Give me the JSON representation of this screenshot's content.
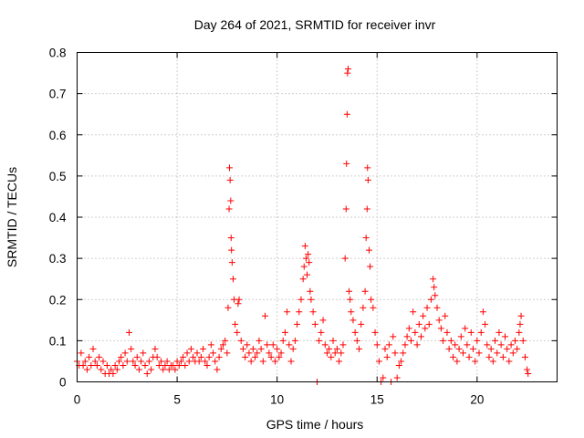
{
  "chart_data": {
    "type": "scatter",
    "title": "Day 264 of 2021, SRMTID for receiver invr",
    "xlabel": "GPS time / hours",
    "ylabel": "SRMTID / TECUs",
    "xlim": [
      0,
      24
    ],
    "ylim": [
      0,
      0.8
    ],
    "xticks": [
      0,
      5,
      10,
      15,
      20
    ],
    "xtick_labels": [
      "0",
      "5",
      "10",
      "15",
      "20"
    ],
    "yticks": [
      0,
      0.1,
      0.2,
      0.3,
      0.4,
      0.5,
      0.6,
      0.7,
      0.8
    ],
    "ytick_labels": [
      "0",
      "0.1",
      "0.2",
      "0.3",
      "0.4",
      "0.5",
      "0.6",
      "0.7",
      "0.8"
    ],
    "grid": true,
    "marker": "+",
    "series": [
      {
        "name": "SRMTID",
        "color": "#ff0000",
        "points": [
          [
            0.0,
            0.05
          ],
          [
            0.1,
            0.04
          ],
          [
            0.2,
            0.07
          ],
          [
            0.3,
            0.04
          ],
          [
            0.4,
            0.05
          ],
          [
            0.5,
            0.03
          ],
          [
            0.6,
            0.06
          ],
          [
            0.7,
            0.04
          ],
          [
            0.8,
            0.08
          ],
          [
            0.9,
            0.05
          ],
          [
            1.0,
            0.04
          ],
          [
            1.1,
            0.06
          ],
          [
            1.2,
            0.03
          ],
          [
            1.3,
            0.05
          ],
          [
            1.4,
            0.02
          ],
          [
            1.5,
            0.04
          ],
          [
            1.6,
            0.02
          ],
          [
            1.7,
            0.03
          ],
          [
            1.8,
            0.02
          ],
          [
            1.9,
            0.04
          ],
          [
            2.0,
            0.03
          ],
          [
            2.1,
            0.05
          ],
          [
            2.2,
            0.06
          ],
          [
            2.3,
            0.04
          ],
          [
            2.4,
            0.07
          ],
          [
            2.5,
            0.05
          ],
          [
            2.6,
            0.12
          ],
          [
            2.7,
            0.08
          ],
          [
            2.8,
            0.05
          ],
          [
            2.9,
            0.04
          ],
          [
            3.0,
            0.06
          ],
          [
            3.1,
            0.03
          ],
          [
            3.2,
            0.05
          ],
          [
            3.3,
            0.07
          ],
          [
            3.4,
            0.04
          ],
          [
            3.5,
            0.02
          ],
          [
            3.6,
            0.05
          ],
          [
            3.7,
            0.03
          ],
          [
            3.8,
            0.06
          ],
          [
            3.9,
            0.08
          ],
          [
            4.0,
            0.06
          ],
          [
            4.1,
            0.04
          ],
          [
            4.2,
            0.05
          ],
          [
            4.3,
            0.03
          ],
          [
            4.4,
            0.04
          ],
          [
            4.5,
            0.05
          ],
          [
            4.6,
            0.03
          ],
          [
            4.7,
            0.04
          ],
          [
            4.8,
            0.04
          ],
          [
            4.9,
            0.03
          ],
          [
            5.0,
            0.05
          ],
          [
            5.1,
            0.04
          ],
          [
            5.2,
            0.05
          ],
          [
            5.3,
            0.06
          ],
          [
            5.4,
            0.04
          ],
          [
            5.5,
            0.07
          ],
          [
            5.6,
            0.05
          ],
          [
            5.7,
            0.08
          ],
          [
            5.8,
            0.06
          ],
          [
            5.9,
            0.05
          ],
          [
            6.0,
            0.07
          ],
          [
            6.1,
            0.05
          ],
          [
            6.2,
            0.06
          ],
          [
            6.3,
            0.08
          ],
          [
            6.4,
            0.05
          ],
          [
            6.5,
            0.04
          ],
          [
            6.6,
            0.06
          ],
          [
            6.7,
            0.09
          ],
          [
            6.8,
            0.07
          ],
          [
            6.9,
            0.05
          ],
          [
            7.0,
            0.03
          ],
          [
            7.1,
            0.06
          ],
          [
            7.2,
            0.08
          ],
          [
            7.3,
            0.09
          ],
          [
            7.4,
            0.1
          ],
          [
            7.5,
            0.07
          ],
          [
            7.55,
            0.18
          ],
          [
            7.6,
            0.42
          ],
          [
            7.62,
            0.52
          ],
          [
            7.65,
            0.49
          ],
          [
            7.68,
            0.44
          ],
          [
            7.7,
            0.35
          ],
          [
            7.72,
            0.32
          ],
          [
            7.75,
            0.29
          ],
          [
            7.8,
            0.25
          ],
          [
            7.85,
            0.2
          ],
          [
            7.9,
            0.14
          ],
          [
            8.0,
            0.12
          ],
          [
            8.05,
            0.19
          ],
          [
            8.1,
            0.2
          ],
          [
            8.2,
            0.1
          ],
          [
            8.3,
            0.08
          ],
          [
            8.4,
            0.06
          ],
          [
            8.5,
            0.09
          ],
          [
            8.6,
            0.07
          ],
          [
            8.7,
            0.05
          ],
          [
            8.8,
            0.08
          ],
          [
            8.9,
            0.06
          ],
          [
            9.0,
            0.07
          ],
          [
            9.1,
            0.1
          ],
          [
            9.2,
            0.08
          ],
          [
            9.3,
            0.05
          ],
          [
            9.4,
            0.16
          ],
          [
            9.5,
            0.09
          ],
          [
            9.6,
            0.07
          ],
          [
            9.7,
            0.06
          ],
          [
            9.8,
            0.09
          ],
          [
            9.9,
            0.05
          ],
          [
            10.0,
            0.08
          ],
          [
            10.1,
            0.06
          ],
          [
            10.2,
            0.07
          ],
          [
            10.3,
            0.1
          ],
          [
            10.4,
            0.12
          ],
          [
            10.5,
            0.17
          ],
          [
            10.6,
            0.09
          ],
          [
            10.7,
            0.05
          ],
          [
            10.8,
            0.08
          ],
          [
            10.9,
            0.1
          ],
          [
            11.0,
            0.14
          ],
          [
            11.1,
            0.17
          ],
          [
            11.2,
            0.2
          ],
          [
            11.3,
            0.25
          ],
          [
            11.35,
            0.28
          ],
          [
            11.4,
            0.33
          ],
          [
            11.45,
            0.3
          ],
          [
            11.5,
            0.26
          ],
          [
            11.55,
            0.31
          ],
          [
            11.6,
            0.29
          ],
          [
            11.65,
            0.22
          ],
          [
            11.7,
            0.2
          ],
          [
            11.8,
            0.17
          ],
          [
            11.9,
            0.14
          ],
          [
            12.0,
            0.0
          ],
          [
            12.1,
            0.1
          ],
          [
            12.2,
            0.12
          ],
          [
            12.3,
            0.15
          ],
          [
            12.4,
            0.09
          ],
          [
            12.5,
            0.07
          ],
          [
            12.6,
            0.08
          ],
          [
            12.7,
            0.06
          ],
          [
            12.8,
            0.1
          ],
          [
            12.9,
            0.07
          ],
          [
            13.0,
            0.08
          ],
          [
            13.1,
            0.05
          ],
          [
            13.2,
            0.07
          ],
          [
            13.3,
            0.09
          ],
          [
            13.4,
            0.3
          ],
          [
            13.45,
            0.42
          ],
          [
            13.47,
            0.53
          ],
          [
            13.5,
            0.65
          ],
          [
            13.52,
            0.75
          ],
          [
            13.55,
            0.76
          ],
          [
            13.6,
            0.22
          ],
          [
            13.65,
            0.2
          ],
          [
            13.7,
            0.17
          ],
          [
            13.8,
            0.15
          ],
          [
            13.9,
            0.12
          ],
          [
            14.0,
            0.1
          ],
          [
            14.1,
            0.08
          ],
          [
            14.2,
            0.14
          ],
          [
            14.3,
            0.18
          ],
          [
            14.4,
            0.22
          ],
          [
            14.45,
            0.35
          ],
          [
            14.5,
            0.42
          ],
          [
            14.52,
            0.52
          ],
          [
            14.55,
            0.49
          ],
          [
            14.6,
            0.32
          ],
          [
            14.65,
            0.28
          ],
          [
            14.7,
            0.2
          ],
          [
            14.8,
            0.18
          ],
          [
            14.9,
            0.12
          ],
          [
            15.0,
            0.09
          ],
          [
            15.1,
            0.05
          ],
          [
            15.2,
            0.0
          ],
          [
            15.3,
            0.01
          ],
          [
            15.4,
            0.08
          ],
          [
            15.5,
            0.06
          ],
          [
            15.6,
            0.09
          ],
          [
            15.7,
            0.0
          ],
          [
            15.8,
            0.11
          ],
          [
            15.9,
            0.07
          ],
          [
            16.0,
            0.01
          ],
          [
            16.1,
            0.04
          ],
          [
            16.2,
            0.05
          ],
          [
            16.3,
            0.07
          ],
          [
            16.4,
            0.09
          ],
          [
            16.5,
            0.11
          ],
          [
            16.6,
            0.13
          ],
          [
            16.7,
            0.1
          ],
          [
            16.8,
            0.17
          ],
          [
            16.9,
            0.12
          ],
          [
            17.0,
            0.09
          ],
          [
            17.1,
            0.14
          ],
          [
            17.2,
            0.11
          ],
          [
            17.3,
            0.16
          ],
          [
            17.4,
            0.13
          ],
          [
            17.5,
            0.18
          ],
          [
            17.6,
            0.14
          ],
          [
            17.7,
            0.2
          ],
          [
            17.8,
            0.25
          ],
          [
            17.85,
            0.23
          ],
          [
            17.9,
            0.21
          ],
          [
            18.0,
            0.18
          ],
          [
            18.1,
            0.15
          ],
          [
            18.2,
            0.13
          ],
          [
            18.3,
            0.1
          ],
          [
            18.4,
            0.16
          ],
          [
            18.5,
            0.12
          ],
          [
            18.6,
            0.08
          ],
          [
            18.7,
            0.1
          ],
          [
            18.8,
            0.06
          ],
          [
            18.9,
            0.09
          ],
          [
            19.0,
            0.05
          ],
          [
            19.1,
            0.08
          ],
          [
            19.2,
            0.11
          ],
          [
            19.3,
            0.07
          ],
          [
            19.4,
            0.13
          ],
          [
            19.5,
            0.09
          ],
          [
            19.6,
            0.06
          ],
          [
            19.7,
            0.12
          ],
          [
            19.8,
            0.08
          ],
          [
            19.9,
            0.05
          ],
          [
            20.0,
            0.1
          ],
          [
            20.1,
            0.07
          ],
          [
            20.2,
            0.12
          ],
          [
            20.3,
            0.17
          ],
          [
            20.4,
            0.14
          ],
          [
            20.5,
            0.09
          ],
          [
            20.6,
            0.06
          ],
          [
            20.7,
            0.08
          ],
          [
            20.8,
            0.05
          ],
          [
            20.9,
            0.1
          ],
          [
            21.0,
            0.07
          ],
          [
            21.1,
            0.12
          ],
          [
            21.2,
            0.09
          ],
          [
            21.3,
            0.06
          ],
          [
            21.4,
            0.11
          ],
          [
            21.5,
            0.08
          ],
          [
            21.6,
            0.05
          ],
          [
            21.7,
            0.09
          ],
          [
            21.8,
            0.07
          ],
          [
            21.9,
            0.1
          ],
          [
            22.0,
            0.08
          ],
          [
            22.1,
            0.12
          ],
          [
            22.15,
            0.14
          ],
          [
            22.2,
            0.16
          ],
          [
            22.3,
            0.1
          ],
          [
            22.4,
            0.06
          ],
          [
            22.5,
            0.03
          ],
          [
            22.55,
            0.02
          ]
        ]
      }
    ]
  }
}
